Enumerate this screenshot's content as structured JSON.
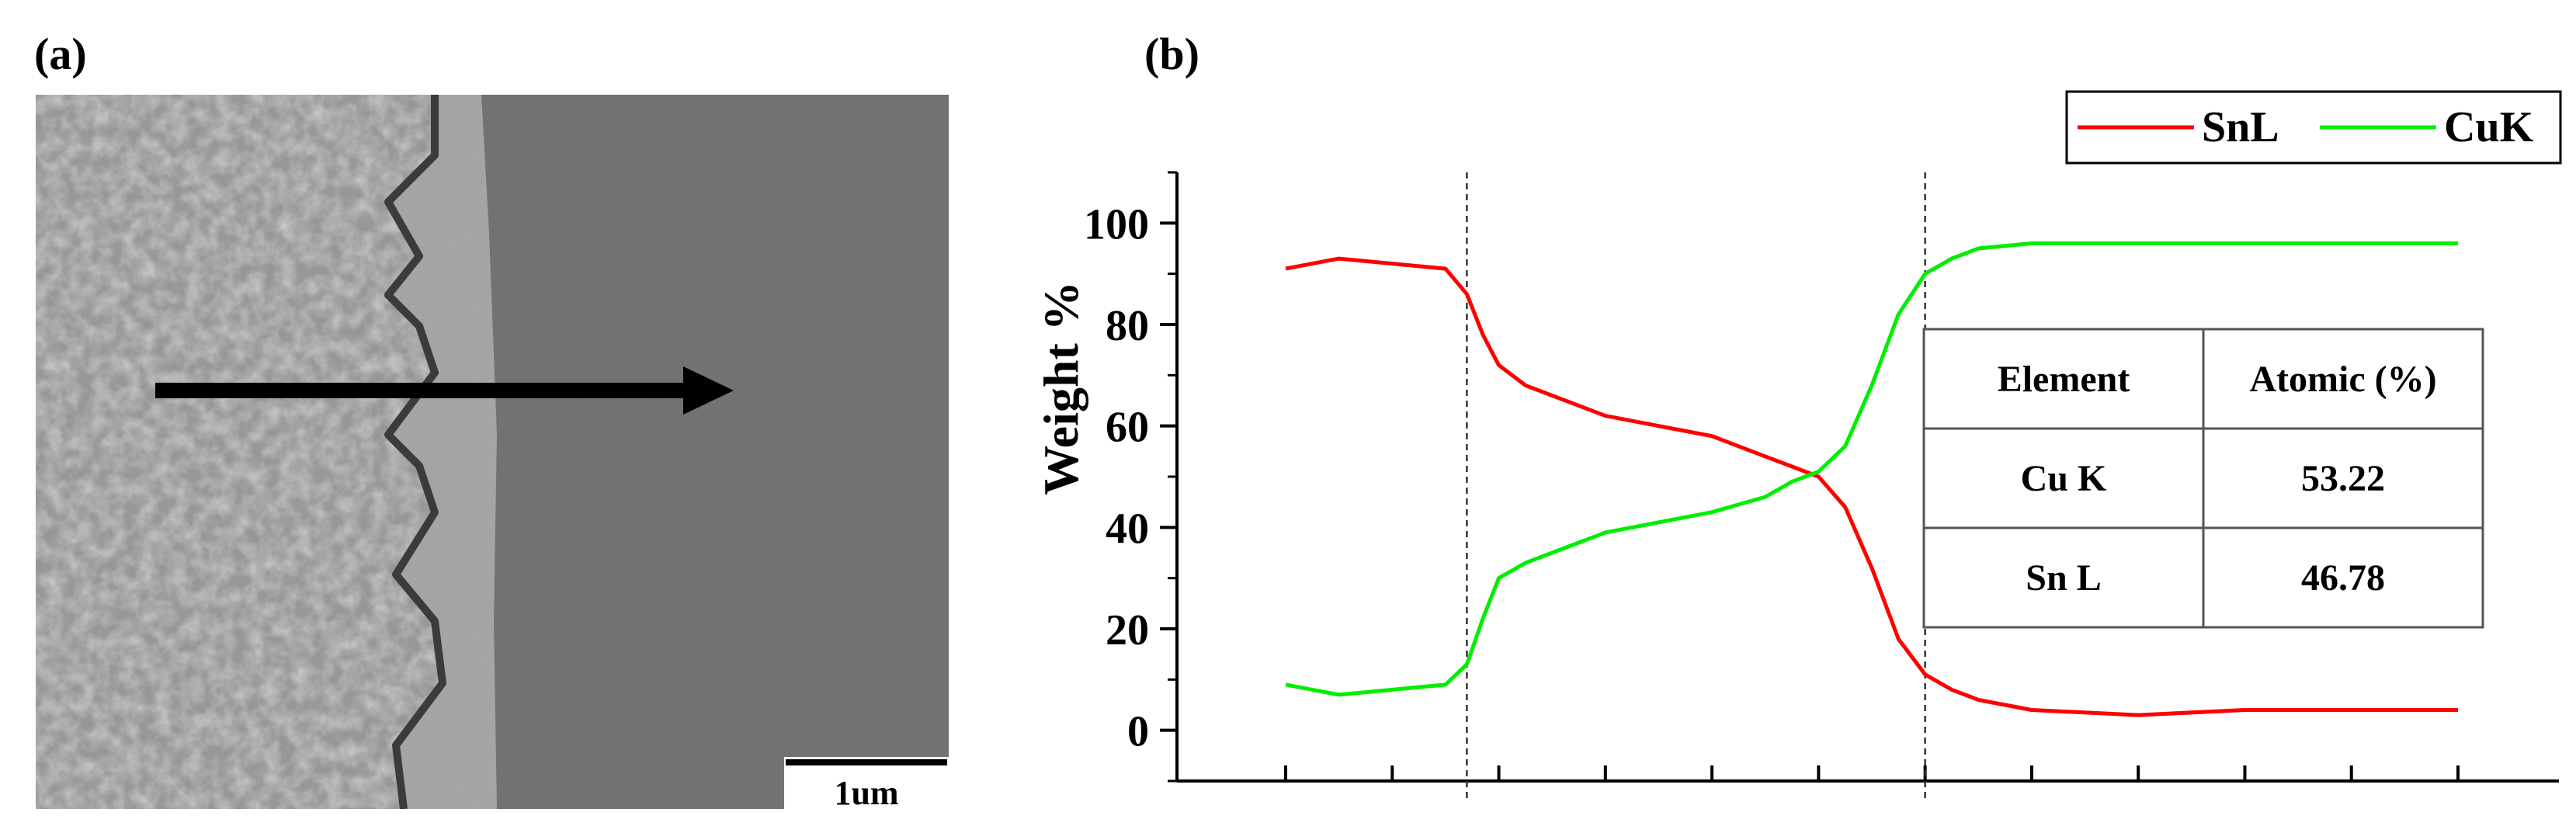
{
  "panels": {
    "a_label": "(a)",
    "b_label": "(b)"
  },
  "sem": {
    "scale_bar_label": "1um"
  },
  "colors": {
    "snl": "#ff0000",
    "cuk": "#00ee00",
    "axis": "#000000"
  },
  "chart_data": {
    "type": "line",
    "title": "",
    "xlabel": "",
    "ylabel": "Weight %",
    "xlim": [
      0,
      11
    ],
    "ylim": [
      -10,
      110
    ],
    "yticks": [
      0,
      20,
      40,
      60,
      80,
      100
    ],
    "grid": false,
    "legend": {
      "placement": "top-right",
      "entries": [
        "SnL",
        "CuK"
      ]
    },
    "reference_lines_x": [
      1.7,
      6.0
    ],
    "x": [
      0.0,
      0.5,
      1.0,
      1.5,
      1.7,
      1.85,
      2.0,
      2.25,
      2.5,
      3.0,
      3.5,
      4.0,
      4.5,
      4.75,
      5.0,
      5.25,
      5.5,
      5.75,
      6.0,
      6.25,
      6.5,
      7.0,
      8.0,
      9.0,
      10.0,
      11.0
    ],
    "series": [
      {
        "name": "SnL",
        "values": [
          91,
          93,
          92,
          91,
          86,
          78,
          72,
          68,
          66,
          62,
          60,
          58,
          54,
          52,
          50,
          44,
          32,
          18,
          11,
          8,
          6,
          4,
          3,
          4,
          4,
          4
        ]
      },
      {
        "name": "CuK",
        "values": [
          9,
          7,
          8,
          9,
          13,
          22,
          30,
          33,
          35,
          39,
          41,
          43,
          46,
          49,
          51,
          56,
          68,
          82,
          90,
          93,
          95,
          96,
          96,
          96,
          96,
          96
        ]
      }
    ],
    "table": {
      "headers": [
        "Element",
        "Atomic (%)"
      ],
      "rows": [
        [
          "Cu K",
          "53.22"
        ],
        [
          "Sn L",
          "46.78"
        ]
      ]
    }
  }
}
